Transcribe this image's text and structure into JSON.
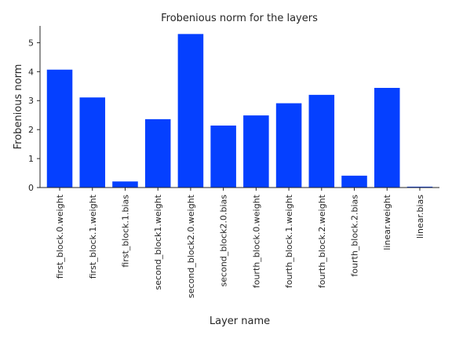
{
  "chart_data": {
    "type": "bar",
    "title": "Frobenious norm for the layers",
    "xlabel": "Layer name",
    "ylabel": "Frobenious norm",
    "categories": [
      "first_block.0.weight",
      "first_block.1.weight",
      "first_block.1.bias",
      "second_block1.weight",
      "second_block2.0.weight",
      "second_block2.0.bias",
      "fourth_block.0.weight",
      "fourth_block.1.weight",
      "fourth_block.2.weight",
      "fourth_block.2.bias",
      "linear.weight",
      "linear.bias"
    ],
    "values": [
      4.07,
      3.11,
      0.21,
      2.36,
      5.3,
      2.14,
      2.49,
      2.91,
      3.2,
      0.41,
      3.44,
      0.03
    ],
    "ylim": [
      0,
      5.58
    ],
    "yticks": [
      0,
      1,
      2,
      3,
      4,
      5
    ],
    "bar_color": "#0540ff",
    "grid": false,
    "legend": "none"
  }
}
